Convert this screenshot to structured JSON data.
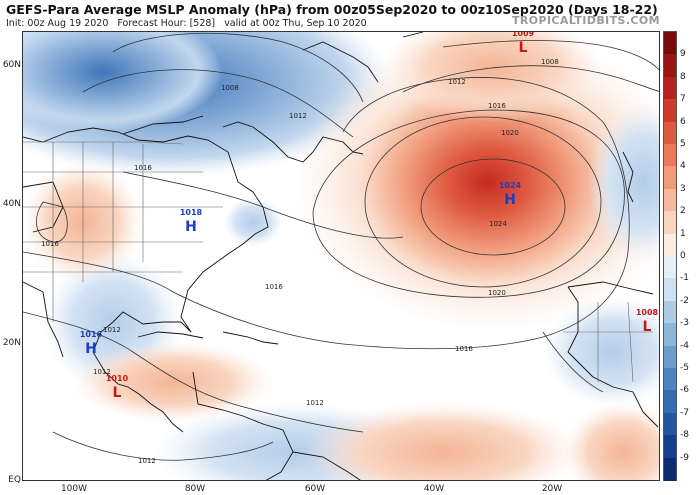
{
  "header": {
    "title": "GEFS-Para Average MSLP Anomaly (hPa) from 00z05Sep2020 to 00z10Sep2020 (Days 18-22)",
    "init": "Init: 00z Aug 19 2020",
    "forecast_hour": "Forecast Hour: [528]",
    "valid": "valid at 00z Thu, Sep 10 2020",
    "brand": "TROPICALTIDBITS.COM"
  },
  "axes": {
    "lat_labels": [
      "60N",
      "40N",
      "20N",
      "EQ"
    ],
    "lon_labels": [
      "100W",
      "80W",
      "60W",
      "40W",
      "20W"
    ]
  },
  "pressure_centers": [
    {
      "type": "H",
      "value": "1024",
      "color": "#1a3fc4"
    },
    {
      "type": "H",
      "value": "1018",
      "color": "#1a3fc4"
    },
    {
      "type": "H",
      "value": "1016",
      "color": "#1a3fc4"
    },
    {
      "type": "L",
      "value": "1009",
      "color": "#c41a1a"
    },
    {
      "type": "L",
      "value": "1008",
      "color": "#c41a1a"
    },
    {
      "type": "L",
      "value": "1010",
      "color": "#c41a1a"
    }
  ],
  "isobar_labels": [
    "1008",
    "1008",
    "1012",
    "1016",
    "1020",
    "1024",
    "1012",
    "1016",
    "1020",
    "1016",
    "1016",
    "1012",
    "1012",
    "1012",
    "1016",
    "1012"
  ],
  "colorbar": {
    "labels": [
      "9",
      "8",
      "7",
      "6",
      "5",
      "4",
      "3",
      "2",
      "1",
      "0",
      "-1",
      "-2",
      "-3",
      "-4",
      "-5",
      "-6",
      "-7",
      "-8",
      "-9"
    ],
    "colors": [
      "#7a0b0b",
      "#9c1414",
      "#b82020",
      "#cf3a2a",
      "#dd5a3e",
      "#e87a58",
      "#f09a78",
      "#f5b89b",
      "#f9d4bf",
      "#fcebe0",
      "#e5eff8",
      "#cde0f1",
      "#aecbe6",
      "#8eb5da",
      "#6d9dcd",
      "#4e85c0",
      "#356db1",
      "#2256a0",
      "#143f8a",
      "#0b2c72"
    ],
    "signal_colors": {
      "high": "#1a3fc4",
      "low": "#c41a1a"
    }
  }
}
